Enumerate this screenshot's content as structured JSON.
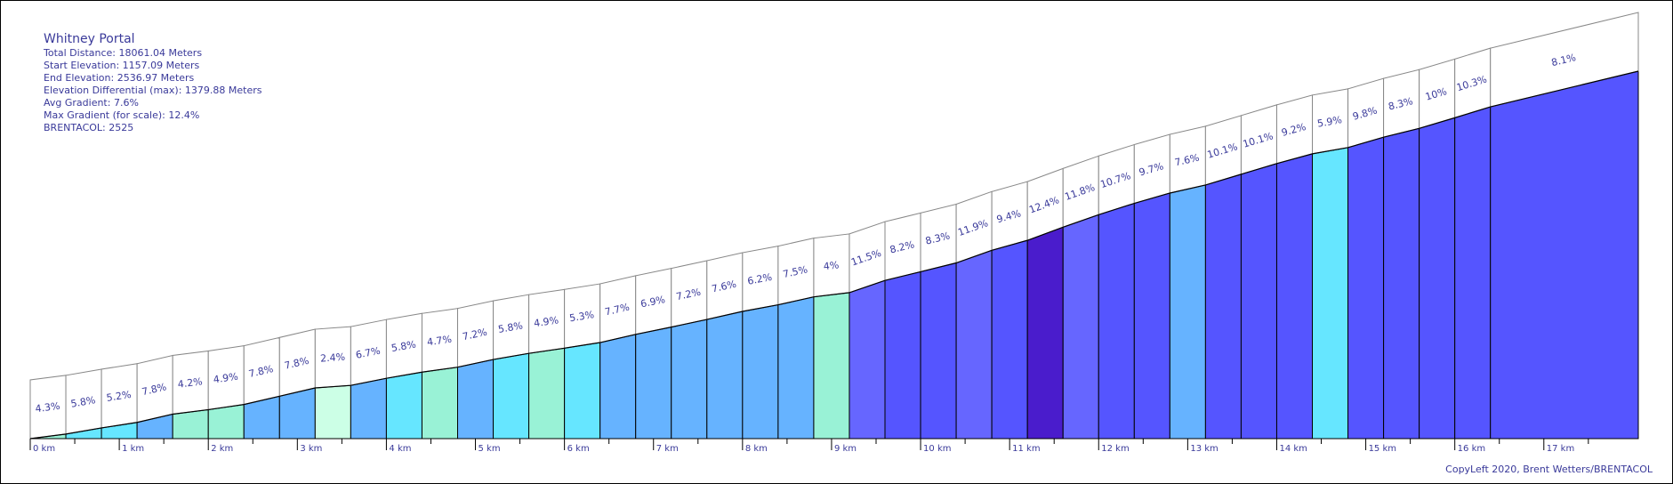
{
  "info": {
    "title": "Whitney Portal",
    "total_distance": "Total Distance: 18061.04 Meters",
    "start_elevation": "Start Elevation: 1157.09 Meters",
    "end_elevation": "End Elevation: 2536.97 Meters",
    "elevation_differential": "Elevation Differential (max): 1379.88 Meters",
    "avg_gradient": "Avg Gradient: 7.6%",
    "max_gradient": "Max Gradient (for scale): 12.4%",
    "brentacol": "BRENTACOL: 2525"
  },
  "credit": "CopyLeft 2020, Brent Wetters/BRENTACOL",
  "chart_data": {
    "type": "area",
    "title": "Whitney Portal",
    "xlabel": "",
    "ylabel": "",
    "x_unit": "km",
    "segment_length_km": 0.4,
    "total_distance_m": 18061.04,
    "start_elevation_m": 1157.09,
    "end_elevation_m": 2536.97,
    "km_ticks": [
      "0 km",
      "1 km",
      "2 km",
      "3 km",
      "4 km",
      "5 km",
      "6 km",
      "7 km",
      "8 km",
      "9 km",
      "10 km",
      "11 km",
      "12 km",
      "13 km",
      "14 km",
      "15 km",
      "16 km",
      "17 km"
    ],
    "gradients": [
      4.3,
      5.8,
      5.2,
      7.8,
      4.2,
      4.9,
      7.8,
      7.8,
      2.4,
      6.7,
      5.8,
      4.7,
      7.2,
      5.8,
      4.9,
      5.3,
      7.7,
      6.9,
      7.2,
      7.6,
      6.2,
      7.5,
      4,
      11.5,
      8.2,
      8.3,
      11.9,
      9.4,
      12.4,
      11.8,
      10.7,
      9.7,
      7.6,
      10.1,
      10.1,
      9.2,
      5.9,
      9.8,
      8.3,
      10,
      10.3,
      8.1
    ],
    "gradient_labels": [
      "4.3%",
      "5.8%",
      "5.2%",
      "7.8%",
      "4.2%",
      "4.9%",
      "7.8%",
      "7.8%",
      "2.4%",
      "6.7%",
      "5.8%",
      "4.7%",
      "7.2%",
      "5.8%",
      "4.9%",
      "5.3%",
      "7.7%",
      "6.9%",
      "7.2%",
      "7.6%",
      "6.2%",
      "7.5%",
      "4%",
      "11.5%",
      "8.2%",
      "8.3%",
      "11.9%",
      "9.4%",
      "12.4%",
      "11.8%",
      "10.7%",
      "9.7%",
      "7.6%",
      "10.1%",
      "10.1%",
      "9.2%",
      "5.9%",
      "9.8%",
      "8.3%",
      "10%",
      "10.3%",
      "8.1%"
    ],
    "gradient_color_scale": {
      "under_3": "#ccffe6",
      "3_to_5": "#99f2d6",
      "5_to_6": "#66e6ff",
      "6_to_8": "#66b3ff",
      "8_to_11": "#5555ff",
      "11_to_12": "#6666ff",
      "12_plus": "#4a1ccc"
    },
    "line_color": "#000000",
    "text_color": "#3a3a9a"
  }
}
